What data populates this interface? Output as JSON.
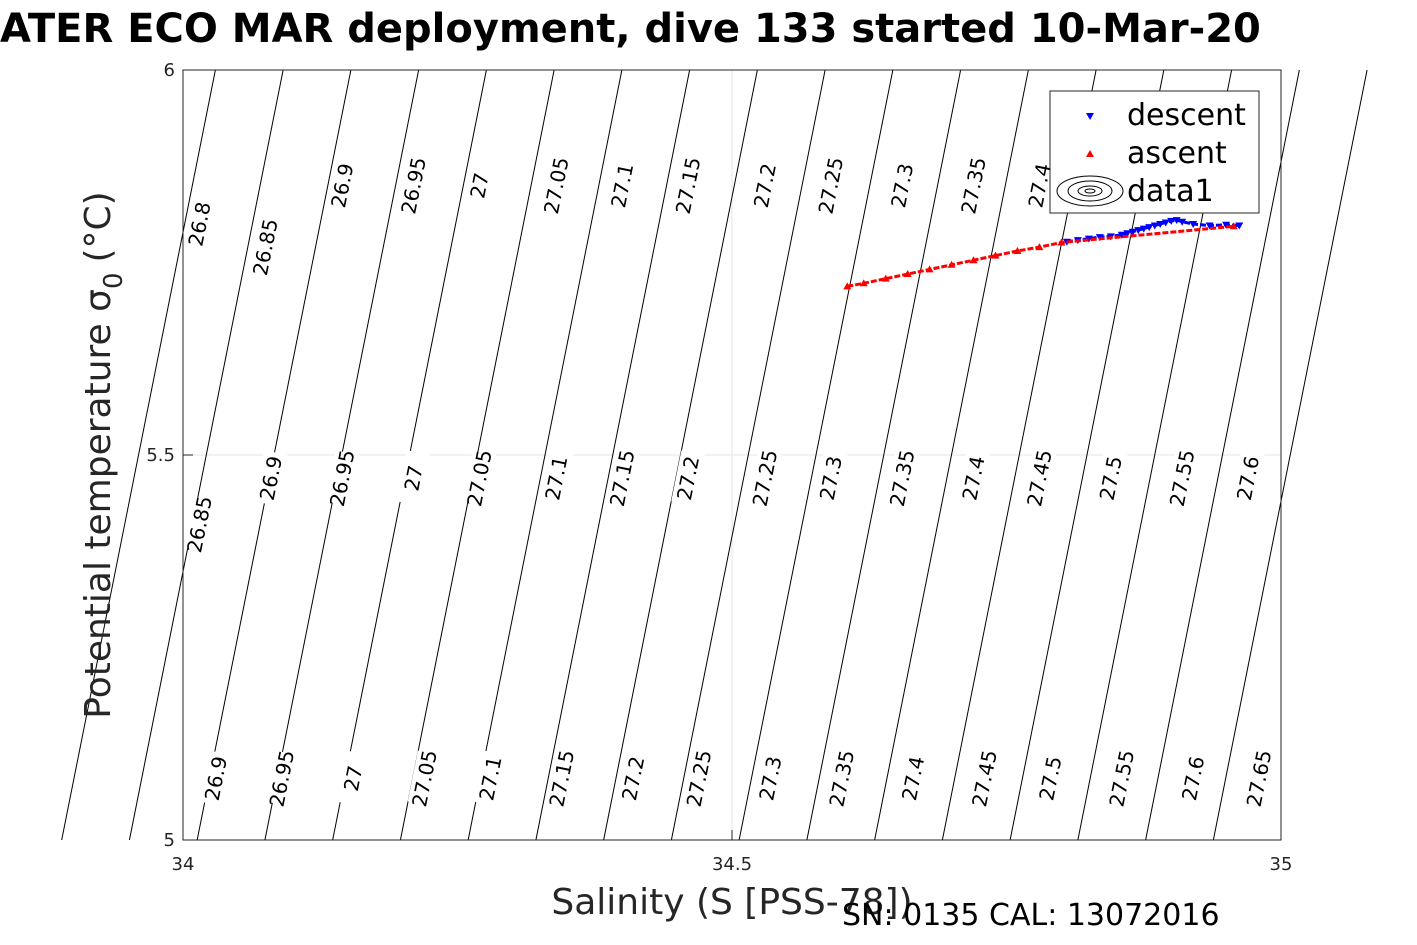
{
  "chart_data": {
    "type": "scatter",
    "title": "ATER ECO MAR deployment, dive 133 started 10-Mar-20",
    "xlabel": "Salinity (S [PSS-78])",
    "ylabel": "Potential temperature σ",
    "ylabel_sub": "0",
    "ylabel_unit": "(°C)",
    "xlim": [
      34,
      35
    ],
    "ylim": [
      5,
      6
    ],
    "xticks": [
      34,
      34.5,
      35
    ],
    "yticks": [
      5,
      5.5,
      6
    ],
    "grid": true,
    "legend": {
      "placement": "top-right",
      "entries": [
        "descent",
        "ascent",
        "data1"
      ]
    },
    "contours": [
      {
        "level": 26.8,
        "labels": [
          {
            "x": 34.015,
            "y": 5.8
          }
        ]
      },
      {
        "level": 26.85,
        "labels": [
          {
            "x": 34.075,
            "y": 5.77
          },
          {
            "x": 34.015,
            "y": 5.41
          }
        ]
      },
      {
        "level": 26.9,
        "labels": [
          {
            "x": 34.145,
            "y": 5.85
          },
          {
            "x": 34.08,
            "y": 5.47
          },
          {
            "x": 34.03,
            "y": 5.08
          }
        ]
      },
      {
        "level": 26.95,
        "labels": [
          {
            "x": 34.21,
            "y": 5.85
          },
          {
            "x": 34.145,
            "y": 5.47
          },
          {
            "x": 34.09,
            "y": 5.08
          }
        ]
      },
      {
        "level": 27,
        "labels": [
          {
            "x": 34.27,
            "y": 5.85
          },
          {
            "x": 34.21,
            "y": 5.47
          },
          {
            "x": 34.155,
            "y": 5.08
          }
        ]
      },
      {
        "level": 27.05,
        "labels": [
          {
            "x": 34.34,
            "y": 5.85
          },
          {
            "x": 34.27,
            "y": 5.47
          },
          {
            "x": 34.22,
            "y": 5.08
          }
        ]
      },
      {
        "level": 27.1,
        "labels": [
          {
            "x": 34.4,
            "y": 5.85
          },
          {
            "x": 34.34,
            "y": 5.47
          },
          {
            "x": 34.28,
            "y": 5.08
          }
        ]
      },
      {
        "level": 27.15,
        "labels": [
          {
            "x": 34.46,
            "y": 5.85
          },
          {
            "x": 34.4,
            "y": 5.47
          },
          {
            "x": 34.345,
            "y": 5.08
          }
        ]
      },
      {
        "level": 27.2,
        "labels": [
          {
            "x": 34.53,
            "y": 5.85
          },
          {
            "x": 34.46,
            "y": 5.47
          },
          {
            "x": 34.41,
            "y": 5.08
          }
        ]
      },
      {
        "level": 27.25,
        "labels": [
          {
            "x": 34.59,
            "y": 5.85
          },
          {
            "x": 34.53,
            "y": 5.47
          },
          {
            "x": 34.47,
            "y": 5.08
          }
        ]
      },
      {
        "level": 27.3,
        "labels": [
          {
            "x": 34.655,
            "y": 5.85
          },
          {
            "x": 34.59,
            "y": 5.47
          },
          {
            "x": 34.535,
            "y": 5.08
          }
        ]
      },
      {
        "level": 27.35,
        "labels": [
          {
            "x": 34.72,
            "y": 5.85
          },
          {
            "x": 34.655,
            "y": 5.47
          },
          {
            "x": 34.6,
            "y": 5.08
          }
        ]
      },
      {
        "level": 27.4,
        "labels": [
          {
            "x": 34.78,
            "y": 5.85
          },
          {
            "x": 34.72,
            "y": 5.47
          },
          {
            "x": 34.665,
            "y": 5.08
          }
        ]
      },
      {
        "level": 27.45,
        "labels": [
          {
            "x": 34.78,
            "y": 5.47
          },
          {
            "x": 34.73,
            "y": 5.08
          }
        ]
      },
      {
        "level": 27.5,
        "labels": [
          {
            "x": 34.845,
            "y": 5.47
          },
          {
            "x": 34.79,
            "y": 5.08
          }
        ]
      },
      {
        "level": 27.55,
        "labels": [
          {
            "x": 34.91,
            "y": 5.47
          },
          {
            "x": 34.855,
            "y": 5.08
          }
        ]
      },
      {
        "level": 27.6,
        "labels": [
          {
            "x": 34.97,
            "y": 5.47
          },
          {
            "x": 34.92,
            "y": 5.08
          }
        ]
      },
      {
        "level": 27.65,
        "labels": [
          {
            "x": 34.98,
            "y": 5.08
          }
        ]
      }
    ],
    "series": [
      {
        "name": "descent",
        "marker": "triangle-down",
        "color": "#0000ff",
        "x": [
          34.805,
          34.815,
          34.825,
          34.835,
          34.845,
          34.855,
          34.86,
          34.865,
          34.87,
          34.875,
          34.88,
          34.885,
          34.89,
          34.895,
          34.9,
          34.905,
          34.91,
          34.92,
          34.935,
          34.95,
          34.962
        ],
        "y": [
          5.777,
          5.779,
          5.781,
          5.783,
          5.784,
          5.786,
          5.788,
          5.79,
          5.792,
          5.794,
          5.796,
          5.798,
          5.8,
          5.802,
          5.804,
          5.805,
          5.803,
          5.8,
          5.798,
          5.799,
          5.798
        ]
      },
      {
        "name": "ascent",
        "marker": "triangle-up",
        "color": "#ff0000",
        "x": [
          34.605,
          34.62,
          34.64,
          34.66,
          34.68,
          34.7,
          34.72,
          34.74,
          34.76,
          34.78,
          34.8,
          34.957
        ],
        "y": [
          5.719,
          5.723,
          5.729,
          5.735,
          5.741,
          5.747,
          5.753,
          5.759,
          5.765,
          5.77,
          5.776,
          5.797
        ]
      }
    ]
  },
  "footer": "SN: 0135  CAL: 13072016"
}
